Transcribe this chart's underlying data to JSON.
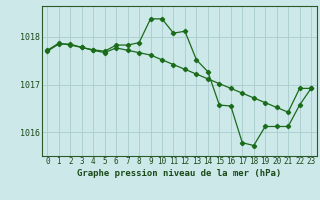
{
  "title": "Graphe pression niveau de la mer (hPa)",
  "bg_color": "#cce8e8",
  "grid_color": "#aacccc",
  "line_color": "#1a6b1a",
  "x_labels": [
    "0",
    "1",
    "2",
    "3",
    "4",
    "5",
    "6",
    "7",
    "8",
    "9",
    "10",
    "11",
    "12",
    "13",
    "14",
    "15",
    "16",
    "17",
    "18",
    "19",
    "20",
    "21",
    "22",
    "23"
  ],
  "series1": [
    1017.7,
    1017.85,
    1017.85,
    1017.78,
    1017.73,
    1017.7,
    1017.83,
    1017.83,
    1017.88,
    1018.38,
    1018.38,
    1018.08,
    1018.12,
    1017.52,
    1017.27,
    1016.57,
    1016.55,
    1015.78,
    1015.72,
    1016.12,
    1016.12,
    1016.12,
    1016.57,
    1016.92
  ],
  "series2": [
    1017.72,
    1017.87,
    1017.83,
    1017.78,
    1017.72,
    1017.67,
    1017.77,
    1017.72,
    1017.67,
    1017.62,
    1017.52,
    1017.42,
    1017.32,
    1017.22,
    1017.12,
    1017.02,
    1016.92,
    1016.82,
    1016.72,
    1016.62,
    1016.52,
    1016.42,
    1016.92,
    1016.92
  ],
  "ylim_min": 1015.5,
  "ylim_max": 1018.65,
  "yticks": [
    1016,
    1017,
    1018
  ],
  "title_fontsize": 6.5,
  "tick_fontsize": 5.5,
  "ylabel_fontsize": 6.0
}
